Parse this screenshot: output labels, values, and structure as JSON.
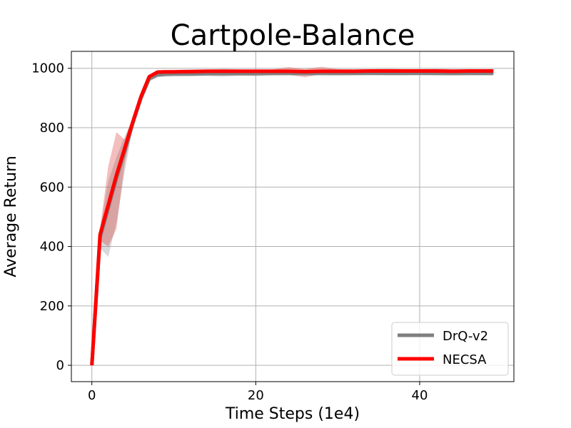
{
  "chart_data": {
    "type": "line",
    "title": "Cartpole-Balance",
    "xlabel": "Time Steps (1e4)",
    "ylabel": "Average Return",
    "xlim": [
      -2.5,
      51.5
    ],
    "ylim": [
      -55,
      1057
    ],
    "xticks": [
      0,
      20,
      40
    ],
    "yticks": [
      0,
      200,
      400,
      600,
      800,
      1000
    ],
    "grid": true,
    "legend_position": "lower-right",
    "series": [
      {
        "name": "DrQ-v2",
        "color": "#808080",
        "band_color": "#808080",
        "x": [
          0,
          1,
          2,
          3,
          4,
          5,
          6,
          7,
          8,
          9,
          10,
          12,
          14,
          16,
          18,
          20,
          22,
          24,
          26,
          28,
          30,
          32,
          34,
          36,
          38,
          40,
          42,
          44,
          46,
          49
        ],
        "y": [
          0,
          430,
          530,
          630,
          720,
          815,
          900,
          965,
          978,
          980,
          981,
          981,
          982,
          982,
          982,
          982,
          983,
          983,
          983,
          983,
          983,
          983,
          983,
          983,
          983,
          983,
          983,
          983,
          983,
          983
        ],
        "lower": [
          0,
          395,
          365,
          480,
          650,
          800,
          890,
          955,
          970,
          972,
          972,
          973,
          974,
          972,
          975,
          974,
          975,
          976,
          975,
          976,
          975,
          976,
          977,
          976,
          976,
          977,
          976,
          975,
          976,
          976
        ],
        "upper": [
          0,
          460,
          620,
          700,
          770,
          830,
          910,
          975,
          986,
          988,
          990,
          990,
          991,
          992,
          990,
          992,
          991,
          992,
          991,
          991,
          991,
          991,
          991,
          991,
          992,
          991,
          991,
          992,
          991,
          991
        ]
      },
      {
        "name": "NECSA",
        "color": "#ff0000",
        "band_color": "#d62728",
        "x": [
          0,
          1,
          2,
          3,
          4,
          5,
          6,
          7,
          8,
          9,
          10,
          12,
          14,
          16,
          18,
          20,
          22,
          24,
          26,
          28,
          30,
          32,
          34,
          36,
          38,
          40,
          42,
          44,
          46,
          49
        ],
        "y": [
          0,
          440,
          540,
          640,
          730,
          820,
          905,
          972,
          987,
          988,
          988,
          989,
          990,
          990,
          990,
          990,
          990,
          990,
          989,
          990,
          990,
          990,
          991,
          991,
          991,
          991,
          991,
          990,
          991,
          991
        ],
        "lower": [
          0,
          420,
          400,
          460,
          680,
          805,
          895,
          965,
          980,
          982,
          980,
          982,
          983,
          981,
          984,
          983,
          984,
          978,
          970,
          980,
          982,
          983,
          984,
          983,
          984,
          984,
          983,
          982,
          983,
          984
        ],
        "upper": [
          0,
          460,
          670,
          785,
          760,
          835,
          915,
          978,
          994,
          995,
          995,
          996,
          996,
          998,
          996,
          996,
          996,
          1004,
          998,
          1005,
          997,
          996,
          997,
          998,
          997,
          997,
          998,
          997,
          997,
          997
        ]
      }
    ]
  }
}
